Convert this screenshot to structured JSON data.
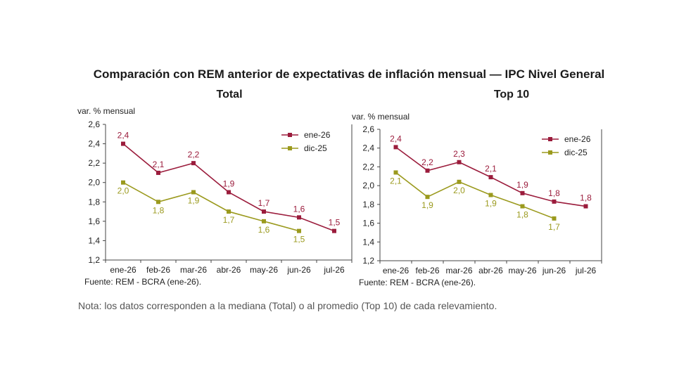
{
  "title": "Comparación con REM anterior de expectativas de inflación mensual — IPC Nivel General",
  "note": "Nota: los datos corresponden a la mediana (Total) o al promedio (Top 10) de cada relevamiento.",
  "colors": {
    "ene26": "#9b1c3c",
    "dic25": "#9b9a1e"
  },
  "chart_data": [
    {
      "type": "line",
      "title": "Total",
      "ylabel": "var. % mensual",
      "categories": [
        "ene-26",
        "feb-26",
        "mar-26",
        "abr-26",
        "may-26",
        "jun-26",
        "jul-26"
      ],
      "ylim": [
        1.2,
        2.6
      ],
      "yticks": [
        "1,2",
        "1,4",
        "1,6",
        "1,8",
        "2,0",
        "2,2",
        "2,4",
        "2,6"
      ],
      "legend_position": "top-right",
      "grid": false,
      "source": "Fuente: REM - BCRA (ene-26).",
      "series": [
        {
          "name": "ene-26",
          "color": "#9b1c3c",
          "values": [
            2.4,
            2.1,
            2.2,
            1.9,
            1.7,
            1.64,
            1.5
          ],
          "labels": [
            "2,4",
            "2,1",
            "2,2",
            "1,9",
            "1,7",
            "1,6",
            "1,5"
          ]
        },
        {
          "name": "dic-25",
          "color": "#9b9a1e",
          "values": [
            2.0,
            1.8,
            1.9,
            1.7,
            1.6,
            1.5,
            null
          ],
          "labels": [
            "2,0",
            "1,8",
            "1,9",
            "1,7",
            "1,6",
            "1,5",
            ""
          ]
        }
      ]
    },
    {
      "type": "line",
      "title": "Top 10",
      "ylabel": "var. % mensual",
      "categories": [
        "ene-26",
        "feb-26",
        "mar-26",
        "abr-26",
        "may-26",
        "jun-26",
        "jul-26"
      ],
      "ylim": [
        1.2,
        2.6
      ],
      "yticks": [
        "1,2",
        "1,4",
        "1,6",
        "1,8",
        "2,0",
        "2,2",
        "2,4",
        "2,6"
      ],
      "legend_position": "top-right",
      "grid": false,
      "source": "Fuente: REM - BCRA (ene-26).",
      "series": [
        {
          "name": "ene-26",
          "color": "#9b1c3c",
          "values": [
            2.41,
            2.16,
            2.25,
            2.09,
            1.92,
            1.83,
            1.78
          ],
          "labels": [
            "2,4",
            "2,2",
            "2,3",
            "2,1",
            "1,9",
            "1,8",
            "1,8"
          ]
        },
        {
          "name": "dic-25",
          "color": "#9b9a1e",
          "values": [
            2.14,
            1.88,
            2.04,
            1.9,
            1.78,
            1.65,
            null
          ],
          "labels": [
            "2,1",
            "1,9",
            "2,0",
            "1,9",
            "1,8",
            "1,7",
            ""
          ]
        }
      ]
    }
  ]
}
